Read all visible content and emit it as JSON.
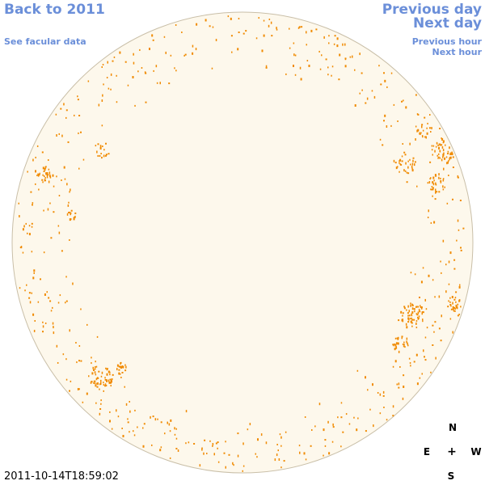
{
  "nav": {
    "back": "Back to 2011",
    "facular": "See facular data",
    "previous_day": "Previous day",
    "next_day": "Next day",
    "previous_hour": "Previous hour",
    "next_hour": "Next hour"
  },
  "timestamp": "2011-10-14T18:59:02",
  "compass": {
    "north": "N",
    "east": "E",
    "center": "+",
    "west": "W",
    "south": "S"
  },
  "colors": {
    "link": "#6b8fd9",
    "disk_fill": "#fdf8ec",
    "disk_border": "#c9bfa8",
    "facula": "#f08a00"
  },
  "icons": {
    "solar_disk": "solar-disk-icon",
    "compass": "compass-rose-icon"
  }
}
